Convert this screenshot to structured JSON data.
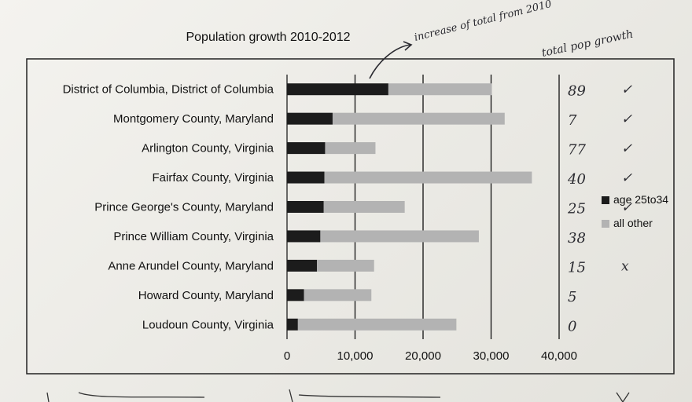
{
  "chart_data": {
    "type": "bar",
    "stacked": true,
    "orientation": "horizontal",
    "title": "Population growth 2010-2012",
    "categories": [
      "District of Columbia, District of Columbia",
      "Montgomery County, Maryland",
      "Arlington County, Virginia",
      "Fairfax County, Virginia",
      "Prince George's County, Maryland",
      "Prince William County, Virginia",
      "Anne Arundel County, Maryland",
      "Howard County, Maryland",
      "Loudoun County, Virginia"
    ],
    "series": [
      {
        "name": "age 25to34",
        "color": "#1c1c1c",
        "values": [
          14900,
          6700,
          5600,
          5500,
          5400,
          4900,
          4400,
          2500,
          1600
        ]
      },
      {
        "name": "all other",
        "color": "#b3b3b3",
        "values": [
          15200,
          25300,
          7400,
          30500,
          11900,
          23300,
          8400,
          9900,
          23300
        ]
      }
    ],
    "xlim": [
      0,
      40000
    ],
    "xticks": [
      "0",
      "10,000",
      "20,000",
      "30,000",
      "40,000"
    ],
    "xtick_values": [
      0,
      10000,
      20000,
      30000,
      40000
    ],
    "grid": "vertical",
    "legend_position": "right"
  },
  "annotations": {
    "handwritten_top": "increase of total from 2010",
    "handwritten_right": "total pop growth",
    "row_marks": [
      "89",
      "7",
      "77",
      "40",
      "25",
      "38",
      "15",
      "5",
      "0"
    ],
    "check_marks": [
      "✓",
      "✓",
      "✓",
      "✓",
      "✓",
      "",
      "x",
      "",
      ""
    ]
  }
}
